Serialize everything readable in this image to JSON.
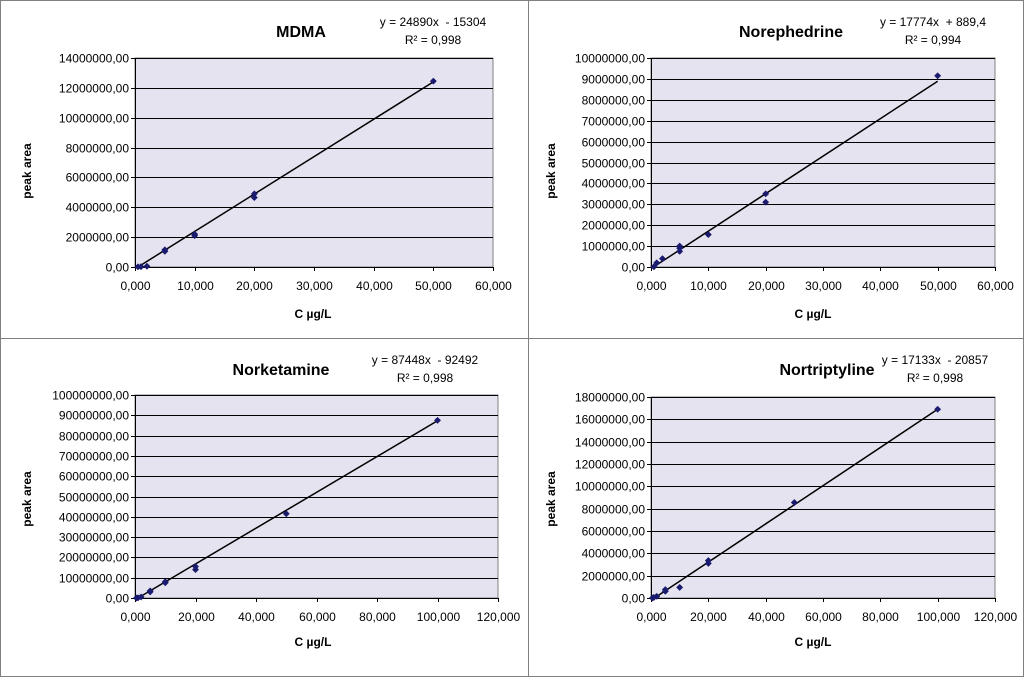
{
  "chart_data": [
    {
      "type": "scatter",
      "title": "MDMA",
      "equation": "y = 24890x  - 15304",
      "r_squared": "R² = 0,998",
      "xlabel": "C µg/L",
      "ylabel": "peak area",
      "xlim": [
        0,
        60
      ],
      "ylim": [
        0,
        14000000
      ],
      "x_ticks": [
        0,
        10,
        20,
        30,
        40,
        50,
        60
      ],
      "x_tick_labels": [
        "0,000",
        "10,000",
        "20,000",
        "30,000",
        "40,000",
        "50,000",
        "60,000"
      ],
      "y_ticks": [
        0,
        2000000,
        4000000,
        6000000,
        8000000,
        10000000,
        12000000,
        14000000
      ],
      "y_tick_labels": [
        "0,00",
        "2000000,00",
        "4000000,00",
        "6000000,00",
        "8000000,00",
        "10000000,00",
        "12000000,00",
        "14000000,00"
      ],
      "points": [
        [
          0.5,
          10000
        ],
        [
          1,
          20000
        ],
        [
          2,
          50000
        ],
        [
          5,
          1050000
        ],
        [
          5,
          1150000
        ],
        [
          10,
          2100000
        ],
        [
          10,
          2200000
        ],
        [
          20,
          4650000
        ],
        [
          20,
          4900000
        ],
        [
          50,
          12450000
        ]
      ],
      "trendline": {
        "x": [
          0.5,
          50
        ],
        "y": [
          0,
          12400000
        ]
      },
      "plot_bg": "#e6e3f0",
      "marker_color": "#1a1a6e"
    },
    {
      "type": "scatter",
      "title": "Norephedrine",
      "equation": "y = 17774x  + 889,4",
      "r_squared": "R² = 0,994",
      "xlabel": "C µg/L",
      "ylabel": "peak area",
      "xlim": [
        0,
        60
      ],
      "ylim": [
        0,
        10000000
      ],
      "x_ticks": [
        0,
        10,
        20,
        30,
        40,
        50,
        60
      ],
      "x_tick_labels": [
        "0,000",
        "10,000",
        "20,000",
        "30,000",
        "40,000",
        "50,000",
        "60,000"
      ],
      "y_ticks": [
        0,
        1000000,
        2000000,
        3000000,
        4000000,
        5000000,
        6000000,
        7000000,
        8000000,
        9000000,
        10000000
      ],
      "y_tick_labels": [
        "0,00",
        "1000000,00",
        "2000000,00",
        "3000000,00",
        "4000000,00",
        "5000000,00",
        "6000000,00",
        "7000000,00",
        "8000000,00",
        "9000000,00",
        "10000000,00"
      ],
      "points": [
        [
          0.5,
          10000
        ],
        [
          1,
          200000
        ],
        [
          2,
          400000
        ],
        [
          5,
          750000
        ],
        [
          5,
          900000
        ],
        [
          5,
          1000000
        ],
        [
          10,
          1550000
        ],
        [
          20,
          3100000
        ],
        [
          20,
          3500000
        ],
        [
          50,
          9150000
        ]
      ],
      "trendline": {
        "x": [
          0.5,
          50
        ],
        "y": [
          10000,
          8890000
        ]
      },
      "plot_bg": "#e6e3f0",
      "marker_color": "#1a1a6e"
    },
    {
      "type": "scatter",
      "title": "Norketamine",
      "equation": "y = 87448x  - 92492",
      "r_squared": "R² = 0,998",
      "xlabel": "C µg/L",
      "ylabel": "peak area",
      "xlim": [
        0,
        120
      ],
      "ylim": [
        0,
        100000000
      ],
      "x_ticks": [
        0,
        20,
        40,
        60,
        80,
        100,
        120
      ],
      "x_tick_labels": [
        "0,000",
        "20,000",
        "40,000",
        "60,000",
        "80,000",
        "100,000",
        "120,000"
      ],
      "y_ticks": [
        0,
        10000000,
        20000000,
        30000000,
        40000000,
        50000000,
        60000000,
        70000000,
        80000000,
        90000000,
        100000000
      ],
      "y_tick_labels": [
        "0,00",
        "10000000,00",
        "20000000,00",
        "30000000,00",
        "40000000,00",
        "50000000,00",
        "60000000,00",
        "70000000,00",
        "80000000,00",
        "90000000,00",
        "100000000,00"
      ],
      "points": [
        [
          0.5,
          0
        ],
        [
          1,
          100000
        ],
        [
          2,
          500000
        ],
        [
          5,
          3000000
        ],
        [
          5,
          3500000
        ],
        [
          10,
          7500000
        ],
        [
          10,
          8000000
        ],
        [
          20,
          14000000
        ],
        [
          20,
          15500000
        ],
        [
          50,
          41500000
        ],
        [
          100,
          87500000
        ]
      ],
      "trendline": {
        "x": [
          1,
          100
        ],
        "y": [
          0,
          87300000
        ]
      },
      "plot_bg": "#e6e3f0",
      "marker_color": "#1a1a6e"
    },
    {
      "type": "scatter",
      "title": "Nortriptyline",
      "equation": "y = 17133x  - 20857",
      "r_squared": "R² = 0,998",
      "xlabel": "C µg/L",
      "ylabel": "peak area",
      "xlim": [
        0,
        120
      ],
      "ylim": [
        0,
        18000000
      ],
      "x_ticks": [
        0,
        20,
        40,
        60,
        80,
        100,
        120
      ],
      "x_tick_labels": [
        "0,000",
        "20,000",
        "40,000",
        "60,000",
        "80,000",
        "100,000",
        "120,000"
      ],
      "y_ticks": [
        0,
        2000000,
        4000000,
        6000000,
        8000000,
        10000000,
        12000000,
        14000000,
        16000000,
        18000000
      ],
      "y_tick_labels": [
        "0,00",
        "2000000,00",
        "4000000,00",
        "6000000,00",
        "8000000,00",
        "10000000,00",
        "12000000,00",
        "14000000,00",
        "16000000,00",
        "18000000,00"
      ],
      "points": [
        [
          0.5,
          0
        ],
        [
          1,
          50000
        ],
        [
          2,
          150000
        ],
        [
          5,
          600000
        ],
        [
          5,
          750000
        ],
        [
          10,
          950000
        ],
        [
          20,
          3100000
        ],
        [
          20,
          3350000
        ],
        [
          50,
          8550000
        ],
        [
          100,
          16900000
        ]
      ],
      "trendline": {
        "x": [
          1.2,
          100
        ],
        "y": [
          0,
          16900000
        ]
      },
      "plot_bg": "#e6e3f0",
      "marker_color": "#1a1a6e"
    }
  ]
}
